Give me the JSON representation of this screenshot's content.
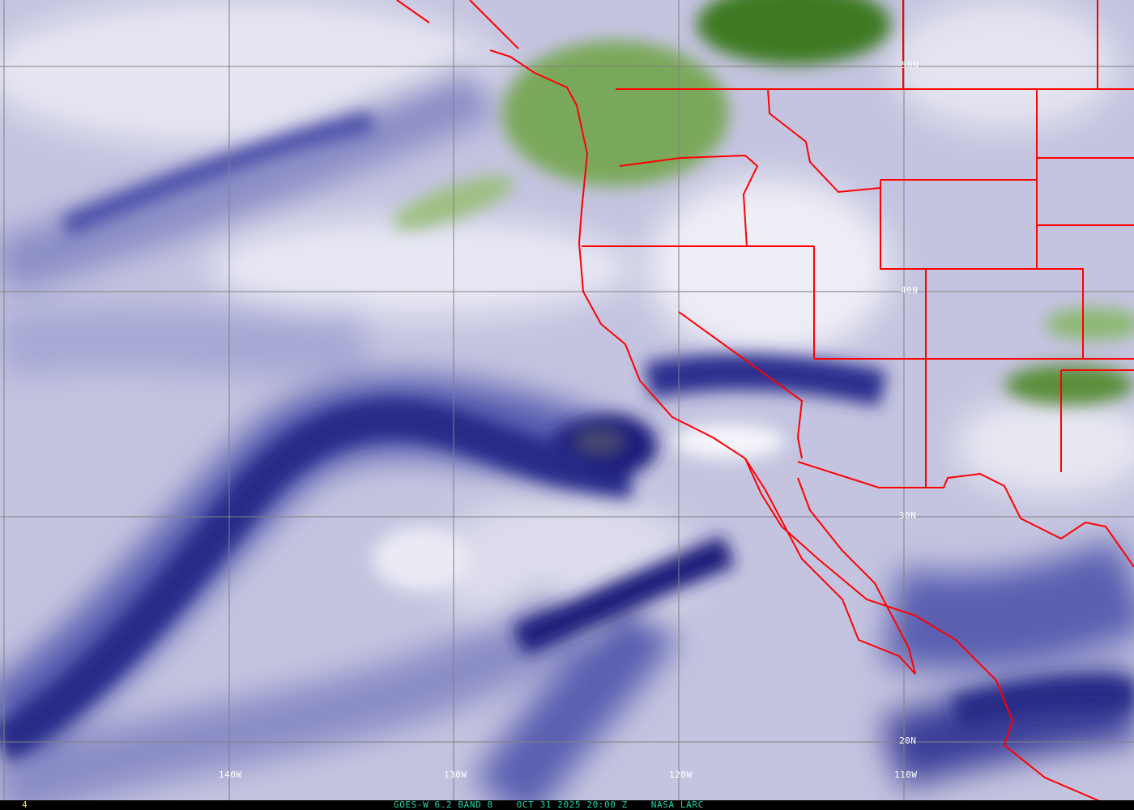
{
  "map": {
    "type": "satellite water vapor imagery",
    "colors": {
      "background": "#c4c4e0",
      "moist_dark": "#1a1f7a",
      "dry_green": "#4a8a2e",
      "borders": "#ff0000",
      "grid": "#808080",
      "caption": "#22d3a6",
      "frame_number": "#f2e633"
    },
    "longitude_labels": [
      "140W",
      "130W",
      "120W",
      "110W"
    ],
    "latitude_labels": [
      "50N",
      "40N",
      "30N",
      "20N"
    ]
  },
  "footer": {
    "frame_number": "4",
    "caption": "GOES-W 6.2 BAND 8    OCT 31 2025 20:00 Z    NASA LARC"
  }
}
